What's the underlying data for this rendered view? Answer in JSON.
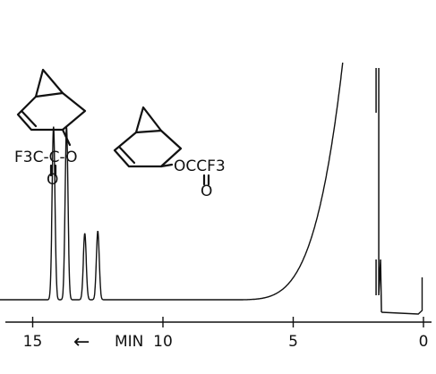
{
  "chart_data": {
    "type": "line",
    "x_axis": {
      "label": "MIN",
      "arrow": "←",
      "ticks": [
        "15",
        "10",
        "5",
        "0"
      ],
      "range": [
        0,
        16.5
      ],
      "direction": "reversed"
    },
    "y_axis": {
      "label": "",
      "ticks": []
    },
    "grid": false,
    "legend": "none",
    "peaks": [
      {
        "x": 14.2,
        "height": 0.73
      },
      {
        "x": 13.7,
        "height": 0.73
      },
      {
        "x": 13.0,
        "height": 0.28
      },
      {
        "x": 12.5,
        "height": 0.29
      }
    ],
    "solvent_front": {
      "x_start": 3.1,
      "x_end": 7.5,
      "height": 1.0
    },
    "injection_spike": {
      "x": 1.75
    },
    "labels": {
      "compound_1": {
        "group_left": "F3C-C-O",
        "carbonyl": "O"
      },
      "compound_2": {
        "group_right": "OCCF3",
        "carbonyl": "O"
      }
    },
    "colors": {
      "ink": "#111111",
      "background": "#ffffff"
    }
  }
}
